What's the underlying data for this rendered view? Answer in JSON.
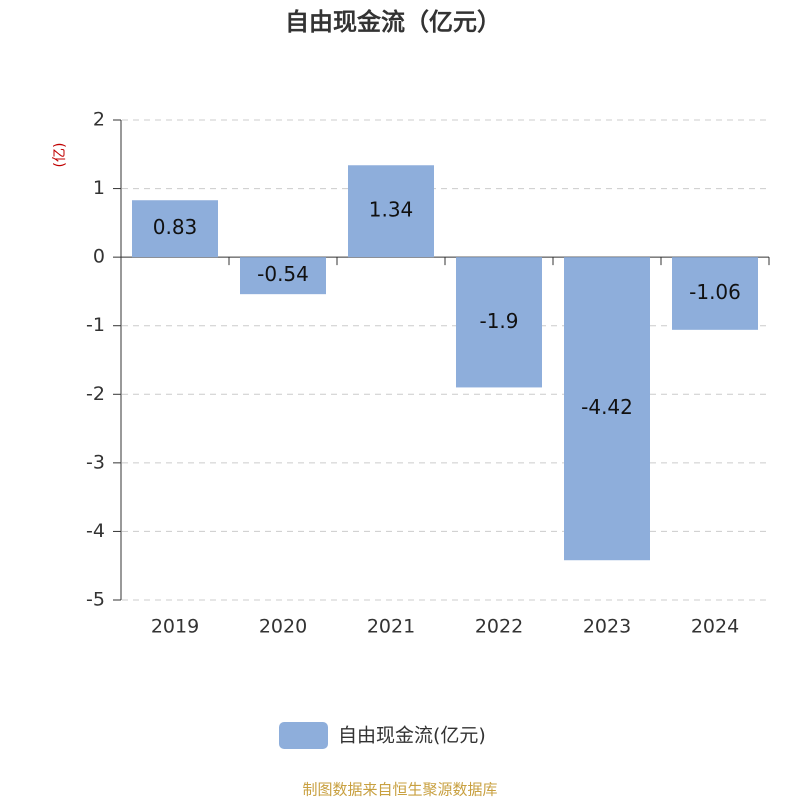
{
  "chart_data": {
    "type": "bar",
    "title": "自由现金流（亿元）",
    "y_label": "(亿)",
    "categories": [
      "2019",
      "2020",
      "2021",
      "2022",
      "2023",
      "2024"
    ],
    "series": [
      {
        "name": "自由现金流(亿元)",
        "color": "#8eaedb",
        "values": [
          0.83,
          -0.54,
          1.34,
          -1.9,
          -4.42,
          -1.06
        ]
      }
    ],
    "ylim": [
      -5,
      2
    ],
    "yticks": [
      -5,
      -4,
      -3,
      -2,
      -1,
      0,
      1,
      2
    ],
    "grid": true,
    "legend": "bottom",
    "source": "制图数据来自恒生聚源数据库"
  }
}
